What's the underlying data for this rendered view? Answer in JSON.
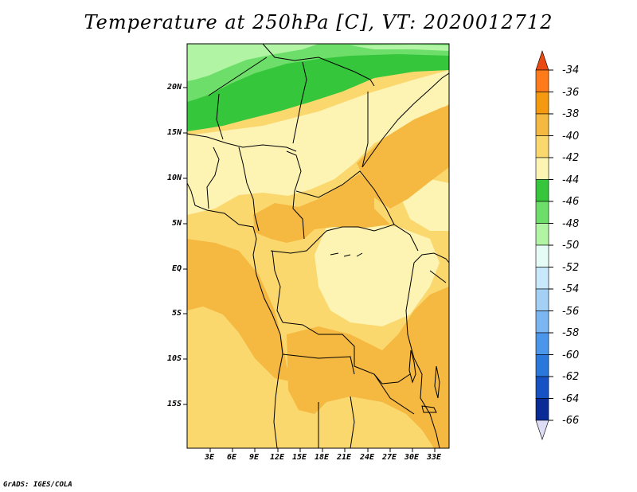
{
  "title": "Temperature at 250hPa [C], VT: 2020012712",
  "credit": "GrADS: IGES/COLA",
  "lat_labels": [
    "20N",
    "15N",
    "10N",
    "5N",
    "EQ",
    "5S",
    "10S",
    "15S"
  ],
  "lon_labels": [
    "3E",
    "6E",
    "9E",
    "12E",
    "15E",
    "18E",
    "21E",
    "24E",
    "27E",
    "30E",
    "33E"
  ],
  "colorbar": {
    "labels": [
      "-34",
      "-36",
      "-38",
      "-40",
      "-42",
      "-44",
      "-46",
      "-48",
      "-50",
      "-52",
      "-54",
      "-56",
      "-58",
      "-60",
      "-62",
      "-64",
      "-66"
    ],
    "colors": [
      "#ff7a1a",
      "#f59a10",
      "#f5b840",
      "#fad86e",
      "#fdf4b4",
      "#35c63c",
      "#6ede6a",
      "#b0f4a4",
      "#e4fbf6",
      "#c8e8fc",
      "#a4d0f6",
      "#7cb6f2",
      "#4a96ea",
      "#2a78dc",
      "#1652c4",
      "#0a2a96"
    ],
    "top_color": "#e84a12",
    "bottom_color": "#ddddf6"
  },
  "map_colors": {
    "c_m48": "#b0f4a4",
    "c_m46": "#6ede6a",
    "c_m44": "#35c63c",
    "c_m42": "#fdf4b4",
    "c_m40": "#fad86e",
    "c_m38": "#f5b840"
  }
}
